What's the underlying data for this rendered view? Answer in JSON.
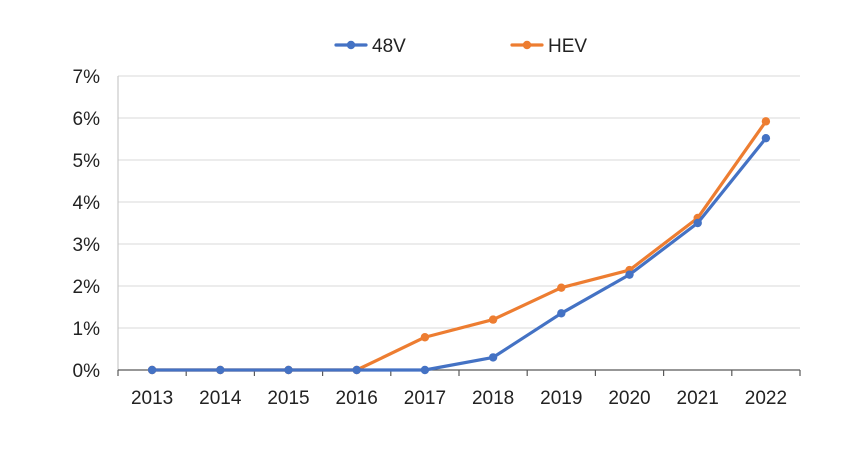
{
  "chart_data": {
    "type": "line",
    "title": "",
    "xlabel": "",
    "ylabel": "",
    "categories": [
      "2013",
      "2014",
      "2015",
      "2016",
      "2017",
      "2018",
      "2019",
      "2020",
      "2021",
      "2022"
    ],
    "ylim": [
      0,
      7
    ],
    "y_ticks": [
      "0%",
      "1%",
      "2%",
      "3%",
      "4%",
      "5%",
      "6%",
      "7%"
    ],
    "grid": true,
    "legend_position": "top-center",
    "series": [
      {
        "name": "48V",
        "color": "#4472c4",
        "values": [
          0,
          0,
          0,
          0,
          0,
          0.3,
          1.35,
          2.27,
          3.5,
          5.52
        ]
      },
      {
        "name": "HEV",
        "color": "#ed7d31",
        "values": [
          0,
          0,
          0,
          0,
          0.78,
          1.2,
          1.96,
          2.38,
          3.62,
          5.92
        ]
      }
    ]
  }
}
